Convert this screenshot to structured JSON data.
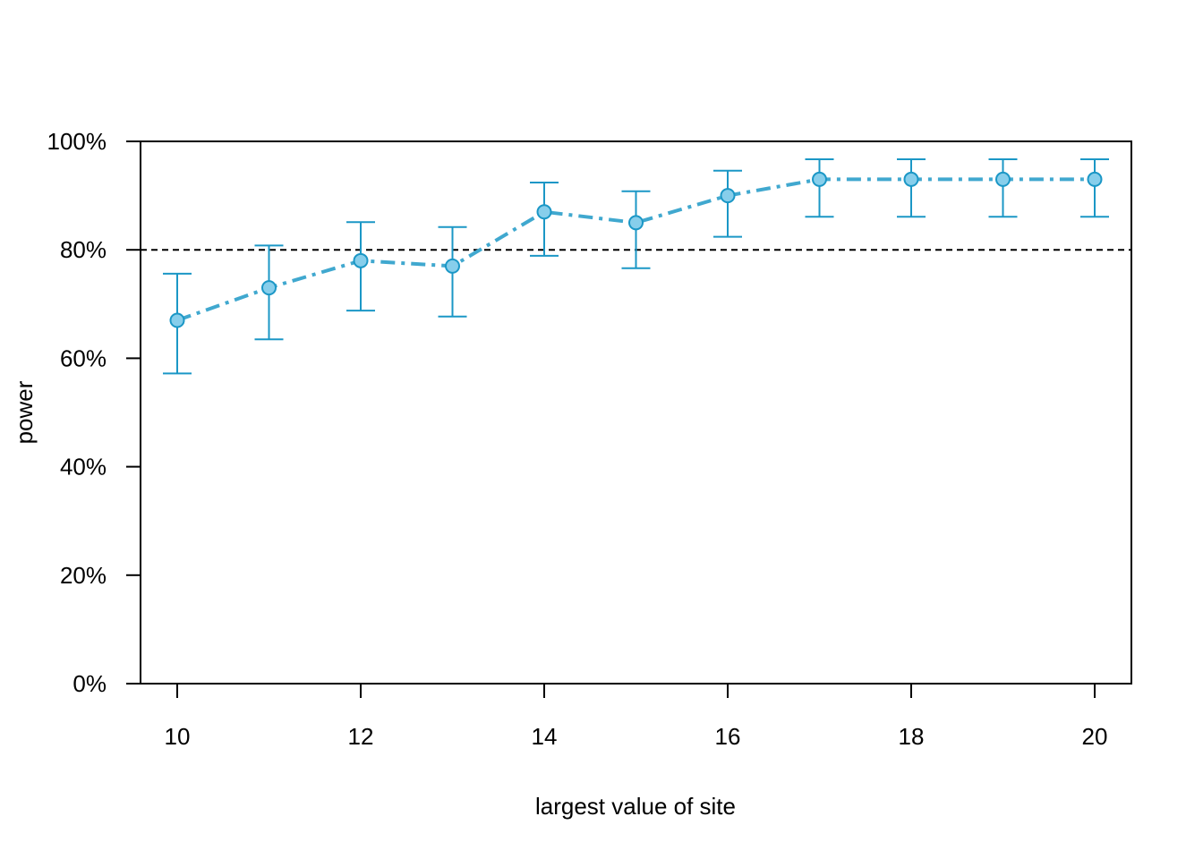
{
  "chart_data": {
    "type": "line",
    "xlabel": "largest value of site",
    "ylabel": "power",
    "x": [
      10,
      11,
      12,
      13,
      14,
      15,
      16,
      17,
      18,
      19,
      20
    ],
    "series": [
      {
        "values": [
          67,
          73,
          78,
          77,
          87,
          85,
          90,
          93,
          93,
          93,
          93
        ],
        "ci_lower": [
          57.2,
          63.5,
          68.8,
          67.7,
          78.9,
          76.6,
          82.4,
          86.1,
          86.1,
          86.1,
          86.1
        ],
        "ci_upper": [
          75.6,
          80.8,
          85.1,
          84.2,
          92.4,
          90.8,
          94.6,
          96.7,
          96.7,
          96.7,
          96.7
        ],
        "color": "#1b97c6",
        "point_fill": "#87ceeb",
        "line_color": "#40a8cf"
      }
    ],
    "xlim": [
      9.6,
      20.4
    ],
    "ylim": [
      0,
      100
    ],
    "xticks": [
      10,
      12,
      14,
      16,
      18,
      20
    ],
    "xtick_labels": [
      "10",
      "12",
      "14",
      "16",
      "18",
      "20"
    ],
    "yticks": [
      0,
      20,
      40,
      60,
      80,
      100
    ],
    "ytick_labels": [
      "0%",
      "20%",
      "40%",
      "60%",
      "80%",
      "100%"
    ],
    "reference_line": {
      "y": 80,
      "style": "dashed",
      "color": "#000000"
    },
    "grid": false,
    "legend": "none"
  }
}
